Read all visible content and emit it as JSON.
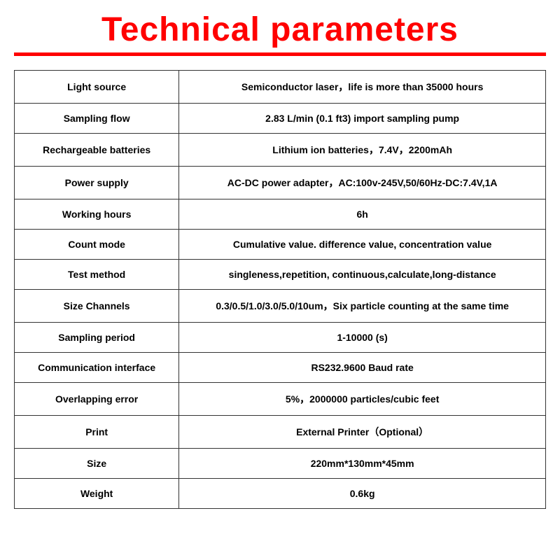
{
  "title": "Technical parameters",
  "title_color": "#ff0000",
  "underline_color": "#ff0000",
  "border_color": "#333333",
  "text_color": "#000000",
  "background_color": "#ffffff",
  "font_size_title": 48,
  "font_size_cell": 14,
  "rows": [
    {
      "label": "Light source",
      "value": "Semiconductor laser，life is more than 35000 hours"
    },
    {
      "label": "Sampling flow",
      "value": "2.83 L/min (0.1 ft3) import sampling pump"
    },
    {
      "label": "Rechargeable batteries",
      "value": "Lithium ion batteries，7.4V，2200mAh"
    },
    {
      "label": "Power supply",
      "value": "AC-DC power adapter，AC:100v-245V,50/60Hz-DC:7.4V,1A"
    },
    {
      "label": "Working hours",
      "value": "6h"
    },
    {
      "label": "Count mode",
      "value": "Cumulative value. difference value, concentration value"
    },
    {
      "label": "Test method",
      "value": "singleness,repetition, continuous,calculate,long-distance"
    },
    {
      "label": "Size Channels",
      "value": "0.3/0.5/1.0/3.0/5.0/10um，Six particle counting at the same time"
    },
    {
      "label": "Sampling period",
      "value": "1-10000 (s)"
    },
    {
      "label": "Communication interface",
      "value": "RS232.9600 Baud rate"
    },
    {
      "label": "Overlapping error",
      "value": "5%，2000000 particles/cubic feet"
    },
    {
      "label": "Print",
      "value": "External Printer（Optional）"
    },
    {
      "label": "Size",
      "value": "220mm*130mm*45mm"
    },
    {
      "label": "Weight",
      "value": "0.6kg"
    }
  ]
}
